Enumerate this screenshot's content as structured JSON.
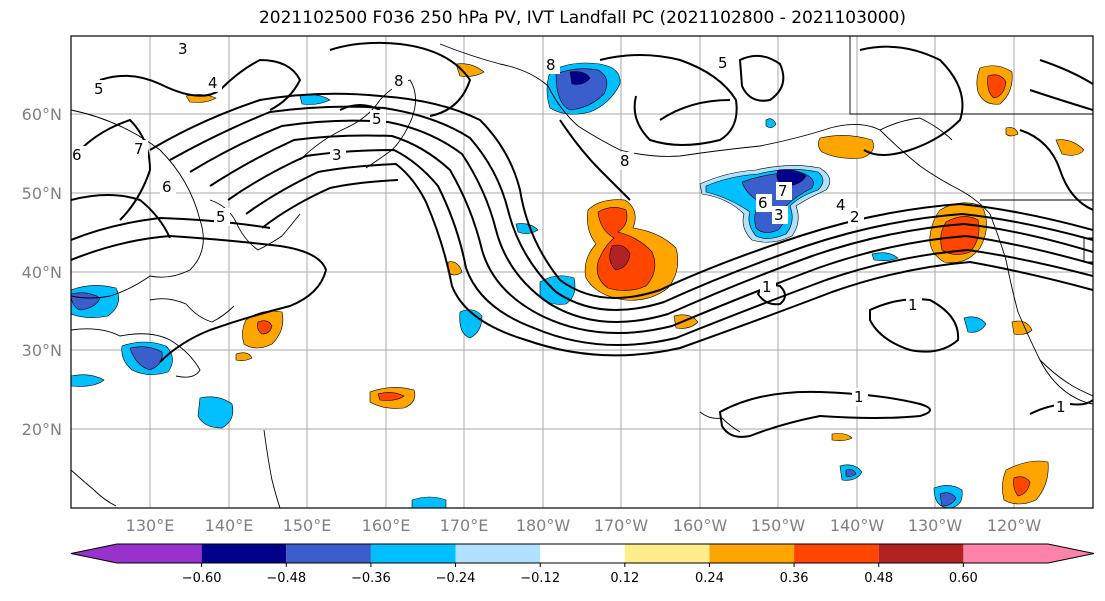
{
  "title": "2021102500 F036 250 hPa PV, IVT Landfall PC (2021102800 - 2021103000)",
  "lat_labels": [
    "60°N",
    "50°N",
    "40°N",
    "30°N",
    "20°N"
  ],
  "lon_labels": [
    "130°E",
    "140°E",
    "150°E",
    "160°E",
    "170°E",
    "180°W",
    "170°W",
    "160°W",
    "150°W",
    "140°W",
    "130°W",
    "120°W"
  ],
  "colorbar": {
    "colors": [
      "#9932cc",
      "#00008b",
      "#3a5fcd",
      "#00bfff",
      "#b0e2ff",
      "#ffffff",
      "#ffec8b",
      "#ffa500",
      "#ff4500",
      "#b22222",
      "#ff82ab"
    ],
    "tick_labels": [
      "−0.60",
      "−0.48",
      "−0.36",
      "−0.24",
      "−0.12",
      "0.12",
      "0.24",
      "0.36",
      "0.48",
      "0.60"
    ]
  },
  "contour_labels": [
    "8",
    "8",
    "8",
    "5",
    "5",
    "5",
    "4",
    "3",
    "3",
    "6",
    "7",
    "6",
    "5",
    "4",
    "2",
    "7",
    "6",
    "3",
    "1",
    "1",
    "1",
    "1"
  ]
}
